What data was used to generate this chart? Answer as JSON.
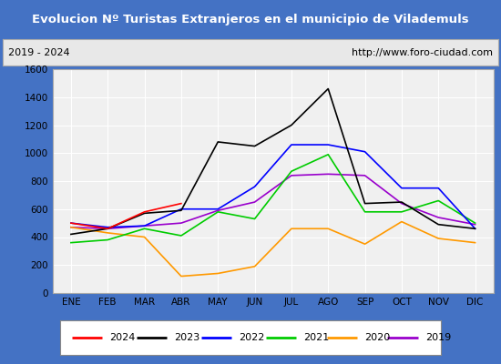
{
  "title": "Evolucion Nº Turistas Extranjeros en el municipio de Vilademuls",
  "subtitle_left": "2019 - 2024",
  "subtitle_right": "http://www.foro-ciudad.com",
  "months": [
    "ENE",
    "FEB",
    "MAR",
    "ABR",
    "MAY",
    "JUN",
    "JUL",
    "AGO",
    "SEP",
    "OCT",
    "NOV",
    "DIC"
  ],
  "series": {
    "2024": [
      500,
      460,
      580,
      640,
      null,
      null,
      null,
      null,
      null,
      null,
      null,
      null
    ],
    "2023": [
      420,
      460,
      570,
      590,
      1080,
      1050,
      1200,
      1460,
      640,
      650,
      490,
      460
    ],
    "2022": [
      500,
      470,
      480,
      600,
      600,
      760,
      1060,
      1060,
      1010,
      750,
      750,
      460
    ],
    "2021": [
      360,
      380,
      460,
      410,
      580,
      530,
      870,
      990,
      580,
      580,
      660,
      500
    ],
    "2020": [
      470,
      430,
      400,
      120,
      140,
      190,
      460,
      460,
      350,
      510,
      390,
      360
    ],
    "2019": [
      470,
      460,
      480,
      500,
      590,
      650,
      840,
      850,
      840,
      640,
      540,
      490
    ]
  },
  "colors": {
    "2024": "#ff0000",
    "2023": "#000000",
    "2022": "#0000ff",
    "2021": "#00cc00",
    "2020": "#ff9900",
    "2019": "#9900cc"
  },
  "ylim": [
    0,
    1600
  ],
  "yticks": [
    0,
    200,
    400,
    600,
    800,
    1000,
    1200,
    1400,
    1600
  ],
  "title_bg_color": "#4472c4",
  "title_text_color": "#ffffff",
  "plot_bg_color": "#f0f0f0",
  "grid_color": "#ffffff",
  "border_color": "#4472c4",
  "legend_border_color": "#888888"
}
